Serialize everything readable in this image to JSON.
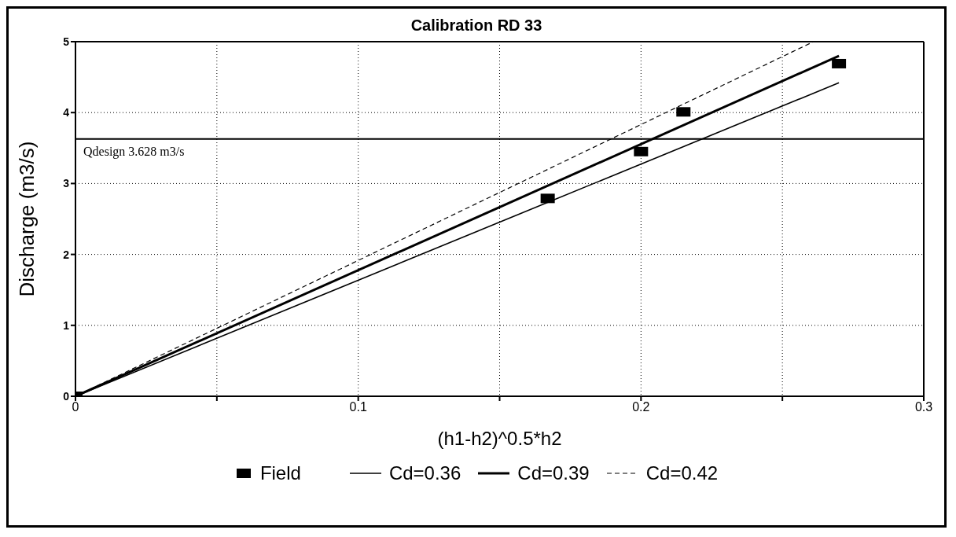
{
  "chart_data": {
    "type": "line",
    "title": "Calibration RD 33",
    "xlabel": "(h1-h2)^0.5*h2",
    "ylabel": "Discharge (m3/s)",
    "xlim": [
      0,
      0.3
    ],
    "ylim": [
      0,
      5
    ],
    "xticks": [
      0,
      {
        "value": 0.05,
        "label": null
      },
      0.1,
      {
        "value": 0.15,
        "label": null
      },
      0.2,
      {
        "value": 0.25,
        "label": null
      },
      0.3
    ],
    "yticks": [
      0,
      1,
      2,
      3,
      4,
      5
    ],
    "grid": true,
    "legend": "bottom",
    "series": [
      {
        "name": "Field",
        "type": "scatter",
        "marker": "square",
        "color": "#000000",
        "x": [
          0,
          0.167,
          0.2,
          0.215,
          0.27
        ],
        "values": [
          0,
          2.79,
          3.45,
          4.01,
          4.69
        ]
      },
      {
        "name": "Cd=0.36",
        "line_style": "solid",
        "color": "#000000",
        "x": [
          0,
          0.27
        ],
        "values": [
          0,
          4.42
        ]
      },
      {
        "name": "Cd=0.39",
        "line_style": "solid",
        "color": "#000000",
        "x": [
          0,
          0.27
        ],
        "values": [
          0,
          4.8
        ]
      },
      {
        "name": "Cd=0.42",
        "line_style": "dashed",
        "color": "#000000",
        "x": [
          0,
          0.261
        ],
        "values": [
          0,
          5
        ]
      }
    ],
    "ref_lines": [
      {
        "axis": "y",
        "value": 3.628,
        "label": "Qdesign 3.628 m3/s",
        "color": "#000000"
      }
    ]
  }
}
